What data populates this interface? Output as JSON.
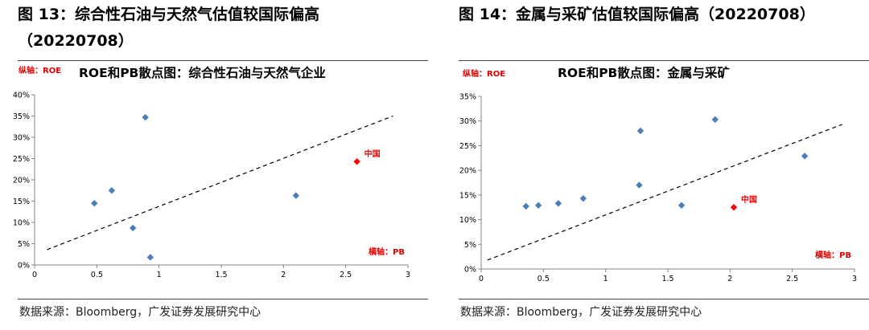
{
  "figures": [
    {
      "title_line1": "图 13：综合性石油与天然气估值较国际偏高",
      "title_line2": "（20220708）",
      "source": "数据来源：Bloomberg，广发证券发展研究中心",
      "chart_data": {
        "type": "scatter",
        "title": "ROE和PB散点图：综合性石油与天然气企业",
        "ylabel": "纵轴：ROE",
        "xlabel": "横轴：PB",
        "xlim": [
          0,
          3
        ],
        "ylim": [
          0,
          0.4
        ],
        "x_ticks": [
          "0",
          "0.5",
          "1",
          "1.5",
          "2",
          "2.5",
          "3"
        ],
        "y_ticks": [
          "0%",
          "5%",
          "10%",
          "15%",
          "20%",
          "25%",
          "30%",
          "35%",
          "40%"
        ],
        "grid": false,
        "series": [
          {
            "color": "#4a7ebb",
            "points": [
              {
                "x": 0.48,
                "y": 0.145
              },
              {
                "x": 0.62,
                "y": 0.175
              },
              {
                "x": 0.79,
                "y": 0.087
              },
              {
                "x": 0.89,
                "y": 0.347
              },
              {
                "x": 0.93,
                "y": 0.018
              },
              {
                "x": 2.1,
                "y": 0.163
              }
            ]
          },
          {
            "color": "#ff0000",
            "points": [
              {
                "x": 2.59,
                "y": 0.243,
                "label": "中国"
              }
            ]
          }
        ],
        "trendline": {
          "style": "dashed",
          "x": [
            0.1,
            2.88
          ],
          "y": [
            0.036,
            0.35
          ]
        }
      }
    },
    {
      "title_line1": "图 14：金属与采矿估值较国际偏高（20220708）",
      "title_line2": "",
      "source": "数据来源：Bloomberg，广发证券发展研究中心",
      "chart_data": {
        "type": "scatter",
        "title": "ROE和PB散点图：金属与采矿",
        "ylabel": "纵轴：ROE",
        "xlabel": "横轴：PB",
        "xlim": [
          0,
          3
        ],
        "ylim": [
          0,
          0.35
        ],
        "x_ticks": [
          "0",
          "0.5",
          "1",
          "1.5",
          "2",
          "2.5",
          "3"
        ],
        "y_ticks": [
          "0%",
          "5%",
          "10%",
          "15%",
          "20%",
          "25%",
          "30%",
          "35%"
        ],
        "grid": false,
        "series": [
          {
            "color": "#4a7ebb",
            "points": [
              {
                "x": 0.36,
                "y": 0.127
              },
              {
                "x": 0.46,
                "y": 0.129
              },
              {
                "x": 0.62,
                "y": 0.133
              },
              {
                "x": 0.82,
                "y": 0.143
              },
              {
                "x": 1.27,
                "y": 0.17
              },
              {
                "x": 1.28,
                "y": 0.28
              },
              {
                "x": 1.61,
                "y": 0.129
              },
              {
                "x": 1.88,
                "y": 0.303
              },
              {
                "x": 2.6,
                "y": 0.229
              }
            ]
          },
          {
            "color": "#ff0000",
            "points": [
              {
                "x": 2.03,
                "y": 0.125,
                "label": "中国"
              }
            ]
          }
        ],
        "trendline": {
          "style": "dashed",
          "x": [
            0.05,
            2.9
          ],
          "y": [
            0.018,
            0.293
          ]
        }
      }
    }
  ]
}
